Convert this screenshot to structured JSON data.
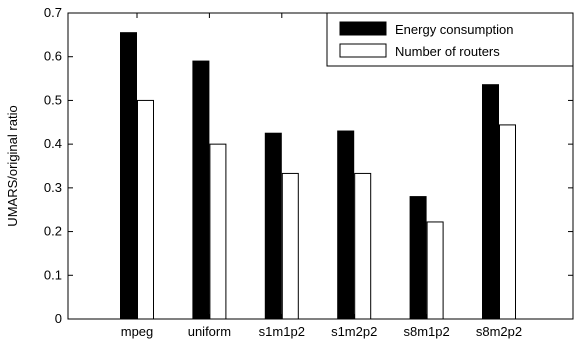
{
  "chart_data": {
    "type": "bar",
    "categories": [
      "mpeg",
      "uniform",
      "s1m1p2",
      "s1m2p2",
      "s8m1p2",
      "s8m2p2"
    ],
    "series": [
      {
        "name": "Energy consumption",
        "values": [
          0.655,
          0.59,
          0.425,
          0.43,
          0.28,
          0.536
        ],
        "color": "#000000"
      },
      {
        "name": "Number of routers",
        "values": [
          0.5,
          0.4,
          0.333,
          0.333,
          0.222,
          0.444
        ],
        "color": "#ffffff"
      }
    ],
    "ylabel": "UMARS/original ratio",
    "ylim": [
      0,
      0.7
    ],
    "yticks": [
      "0",
      "0.1",
      "0.2",
      "0.3",
      "0.4",
      "0.5",
      "0.6",
      "0.7"
    ],
    "grid": false,
    "legend_position": "top-right"
  }
}
